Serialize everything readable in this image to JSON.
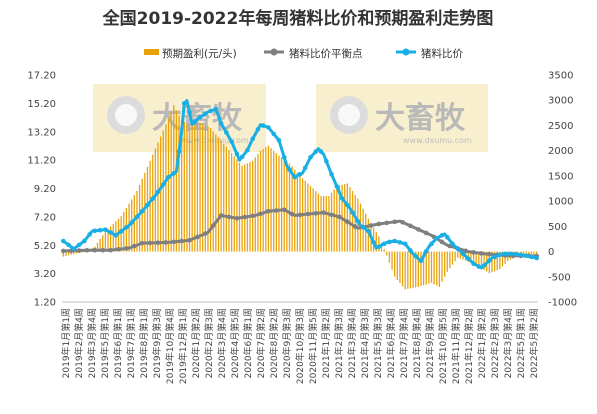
{
  "chart_data": {
    "type": "bar+line",
    "title": "全国2019-2022年每周猪料比价和预期盈利走势图",
    "left_axis": {
      "ticks": [
        "1.20",
        "3.20",
        "5.20",
        "7.20",
        "9.20",
        "11.20",
        "13.20",
        "15.20",
        "17.20"
      ],
      "ylim": [
        1.2,
        17.2
      ]
    },
    "right_axis": {
      "ticks": [
        "-1000",
        "-500",
        "0",
        "500",
        "1000",
        "1500",
        "2000",
        "2500",
        "3000",
        "3500"
      ],
      "ylim": [
        -1000,
        3500
      ]
    },
    "legend": [
      "预期盈利(元/头)",
      "猪料比价平衡点",
      "猪料比价"
    ],
    "legend_position": "top",
    "colors": {
      "profit": "#E8A20C",
      "balance": "#7F7F7F",
      "ratio": "#18AEE6"
    },
    "watermark": {
      "brand": "大畜牧",
      "site": "www.dxumu.com"
    },
    "x_labels": [
      "2019年1月第1周",
      "2019年2月第4周",
      "2019年3月第4周",
      "2019年5月第1周",
      "2019年6月第1周",
      "2019年7月第1周",
      "2019年8月第1周",
      "2019年9月第3周",
      "2019年10月第4周",
      "2019年12月第1周",
      "2020年1月第2周",
      "2020年2月第3周",
      "2020年3月第4周",
      "2020年4月第5周",
      "2020年6月第1周",
      "2020年7月第2周",
      "2020年8月第2周",
      "2020年9月第3周",
      "2020年10月第3周",
      "2020年11月第5周",
      "2021年1月第2周",
      "2021年2月第3周",
      "2021年3月第4周",
      "2021年4月第3周",
      "2021年5月第3周",
      "2021年6月第4周",
      "2021年7月第4周",
      "2021年8月第4周",
      "2021年9月第4周",
      "2021年10月第5周",
      "2021年11月第3周",
      "2021年12月第2周",
      "2022年1月第2周",
      "2022年2月第3周",
      "2022年3月第4周",
      "2022年5月第1周",
      "2022年5月第2周"
    ],
    "series": [
      {
        "name": "预期盈利(元/头)",
        "axis": "right",
        "type": "bar",
        "keypoints": [
          [
            0,
            -100
          ],
          [
            3,
            -60
          ],
          [
            9,
            0
          ],
          [
            12,
            100
          ],
          [
            16,
            400
          ],
          [
            22,
            700
          ],
          [
            28,
            1200
          ],
          [
            33,
            1800
          ],
          [
            38,
            2400
          ],
          [
            42,
            2900
          ],
          [
            45,
            2600
          ],
          [
            48,
            2500
          ],
          [
            52,
            2550
          ],
          [
            56,
            2450
          ],
          [
            60,
            2200
          ],
          [
            64,
            1950
          ],
          [
            68,
            1700
          ],
          [
            72,
            1800
          ],
          [
            75,
            2000
          ],
          [
            78,
            2100
          ],
          [
            82,
            1900
          ],
          [
            86,
            1750
          ],
          [
            90,
            1500
          ],
          [
            94,
            1300
          ],
          [
            98,
            1100
          ],
          [
            101,
            1100
          ],
          [
            104,
            1300
          ],
          [
            108,
            1350
          ],
          [
            112,
            1050
          ],
          [
            116,
            650
          ],
          [
            120,
            300
          ],
          [
            123,
            -80
          ],
          [
            126,
            -500
          ],
          [
            130,
            -750
          ],
          [
            135,
            -700
          ],
          [
            140,
            -620
          ],
          [
            143,
            -700
          ],
          [
            146,
            -400
          ],
          [
            150,
            -120
          ],
          [
            154,
            -200
          ],
          [
            158,
            -300
          ],
          [
            162,
            -430
          ],
          [
            166,
            -350
          ],
          [
            169,
            -190
          ],
          [
            172,
            -110
          ],
          [
            176,
            -70
          ],
          [
            180,
            -40
          ]
        ]
      },
      {
        "name": "猪料比价平衡点",
        "axis": "left",
        "type": "line",
        "keypoints": [
          [
            0,
            4.8
          ],
          [
            10,
            4.85
          ],
          [
            18,
            4.85
          ],
          [
            25,
            5.0
          ],
          [
            30,
            5.35
          ],
          [
            40,
            5.4
          ],
          [
            48,
            5.55
          ],
          [
            55,
            6.1
          ],
          [
            60,
            7.3
          ],
          [
            66,
            7.1
          ],
          [
            73,
            7.3
          ],
          [
            78,
            7.6
          ],
          [
            84,
            7.7
          ],
          [
            88,
            7.3
          ],
          [
            93,
            7.4
          ],
          [
            99,
            7.5
          ],
          [
            105,
            7.2
          ],
          [
            112,
            6.4
          ],
          [
            120,
            6.7
          ],
          [
            128,
            6.9
          ],
          [
            134,
            6.4
          ],
          [
            140,
            5.9
          ],
          [
            146,
            5.2
          ],
          [
            154,
            4.75
          ],
          [
            160,
            4.6
          ],
          [
            170,
            4.45
          ],
          [
            180,
            4.45
          ]
        ]
      },
      {
        "name": "猪料比价",
        "axis": "left",
        "type": "line",
        "keypoints": [
          [
            0,
            5.5
          ],
          [
            4,
            4.95
          ],
          [
            8,
            5.5
          ],
          [
            11,
            6.2
          ],
          [
            16,
            6.3
          ],
          [
            20,
            5.9
          ],
          [
            25,
            6.6
          ],
          [
            30,
            7.6
          ],
          [
            35,
            8.7
          ],
          [
            40,
            10.0
          ],
          [
            43,
            10.4
          ],
          [
            45,
            13.2
          ],
          [
            46,
            15.2
          ],
          [
            47,
            15.4
          ],
          [
            49,
            13.7
          ],
          [
            51,
            14.1
          ],
          [
            55,
            14.6
          ],
          [
            58,
            14.8
          ],
          [
            60,
            13.8
          ],
          [
            64,
            12.5
          ],
          [
            67,
            11.2
          ],
          [
            70,
            11.9
          ],
          [
            72,
            12.7
          ],
          [
            75,
            13.7
          ],
          [
            78,
            13.5
          ],
          [
            82,
            12.6
          ],
          [
            85,
            10.8
          ],
          [
            88,
            10.0
          ],
          [
            91,
            10.3
          ],
          [
            94,
            11.4
          ],
          [
            97,
            12.0
          ],
          [
            99,
            11.6
          ],
          [
            102,
            10.2
          ],
          [
            106,
            8.5
          ],
          [
            109,
            7.8
          ],
          [
            113,
            6.6
          ],
          [
            116,
            6.2
          ],
          [
            119,
            5.0
          ],
          [
            123,
            5.4
          ],
          [
            126,
            5.5
          ],
          [
            130,
            5.3
          ],
          [
            133,
            4.6
          ],
          [
            136,
            4.1
          ],
          [
            139,
            5.1
          ],
          [
            142,
            5.7
          ],
          [
            145,
            6.0
          ],
          [
            148,
            5.3
          ],
          [
            152,
            4.6
          ],
          [
            156,
            3.9
          ],
          [
            159,
            3.6
          ],
          [
            163,
            4.3
          ],
          [
            167,
            4.6
          ],
          [
            171,
            4.6
          ],
          [
            175,
            4.5
          ],
          [
            180,
            4.3
          ]
        ]
      }
    ]
  }
}
